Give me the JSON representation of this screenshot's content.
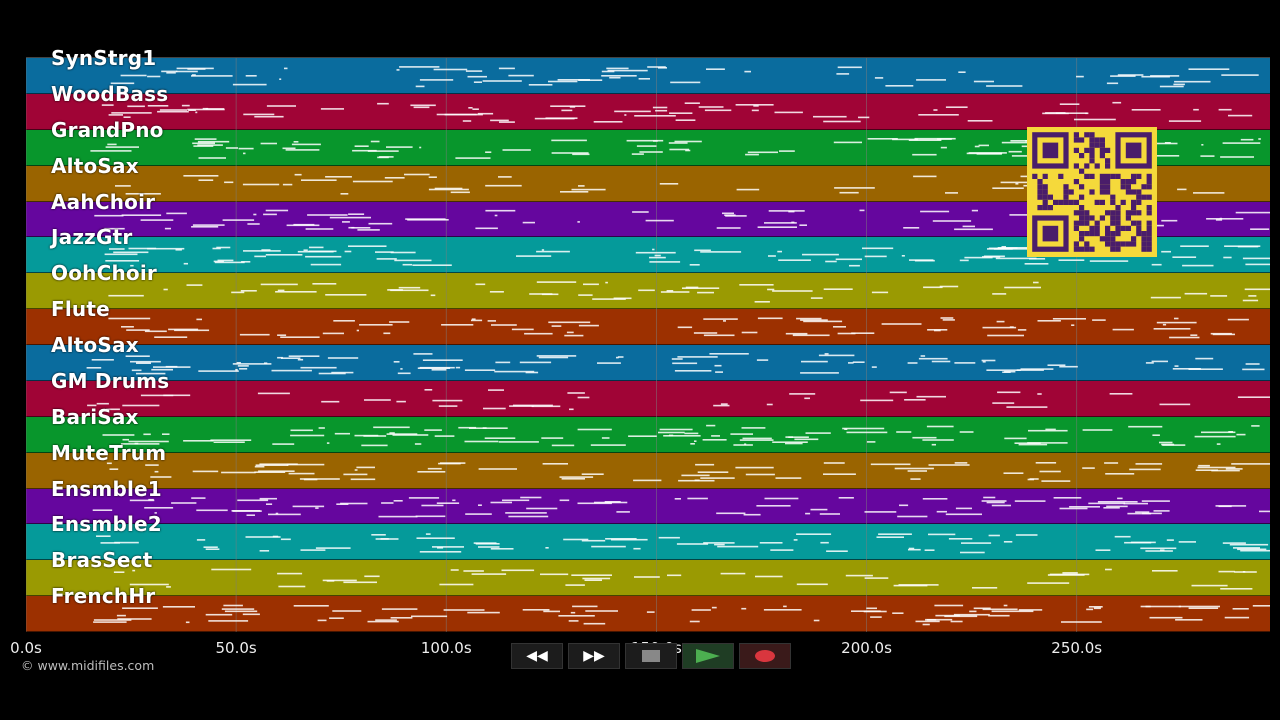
{
  "tracks": [
    {
      "label": "SynStrg1",
      "color": "#0a6c9e"
    },
    {
      "label": "WoodBass",
      "color": "#a00436"
    },
    {
      "label": "GrandPno",
      "color": "#08962c"
    },
    {
      "label": "AltoSax",
      "color": "#9a6400"
    },
    {
      "label": "AahChoir",
      "color": "#65069e"
    },
    {
      "label": "JazzGtr",
      "color": "#059a9a"
    },
    {
      "label": "OohChoir",
      "color": "#9a9a02"
    },
    {
      "label": "Flute",
      "color": "#9c3000"
    },
    {
      "label": "AltoSax",
      "color": "#0a6c9e"
    },
    {
      "label": "GM Drums",
      "color": "#a00436"
    },
    {
      "label": "BariSax",
      "color": "#08962c"
    },
    {
      "label": "MuteTrum",
      "color": "#9a6400"
    },
    {
      "label": "Ensmble1",
      "color": "#65069e"
    },
    {
      "label": "Ensmble2",
      "color": "#059a9a"
    },
    {
      "label": "BrasSect",
      "color": "#9a9a02"
    },
    {
      "label": "FrenchHr",
      "color": "#9c3000"
    }
  ],
  "timeline": {
    "max_seconds": 296,
    "ticks": [
      {
        "value": 0,
        "label": "0.0s"
      },
      {
        "value": 50,
        "label": "50.0s"
      },
      {
        "value": 100,
        "label": "100.0s"
      },
      {
        "value": 150,
        "label": "150.0s"
      },
      {
        "value": 200,
        "label": "200.0s"
      },
      {
        "value": 250,
        "label": "250.0s"
      }
    ]
  },
  "copyright": "© www.midifiles.com",
  "transport": {
    "rewind": "◀◀",
    "forward": "▶▶",
    "stop": "■",
    "play": "▶",
    "record": "●"
  },
  "colors": {
    "background": "#000000",
    "note": "#ffffff",
    "gridline": "#7d7d7d",
    "qr_fg": "#4a1d6a",
    "qr_bg": "#f5d93b"
  }
}
